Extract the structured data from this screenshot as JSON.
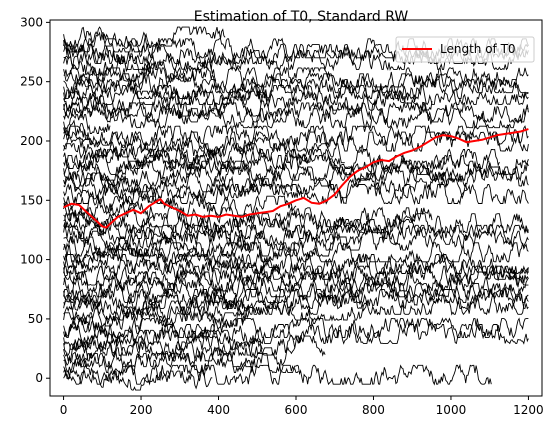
{
  "chart_data": {
    "type": "line",
    "title": "Estimation of T0, Standard RW",
    "xlabel": "",
    "ylabel": "",
    "xlim": [
      -35,
      1235
    ],
    "ylim": [
      -15,
      302
    ],
    "xticks": [
      0,
      200,
      400,
      600,
      800,
      1000,
      1200
    ],
    "yticks": [
      0,
      50,
      100,
      150,
      200,
      250,
      300
    ],
    "grid": false,
    "legend": {
      "placement": "top-right",
      "entries": [
        "Length of T0"
      ]
    },
    "series": [
      {
        "name": "Length of T0",
        "color": "#ff0000",
        "x": [
          0,
          20,
          40,
          60,
          80,
          100,
          110,
          120,
          140,
          160,
          180,
          200,
          220,
          240,
          250,
          260,
          280,
          300,
          320,
          340,
          360,
          380,
          400,
          420,
          440,
          460,
          480,
          500,
          520,
          540,
          560,
          580,
          600,
          620,
          640,
          660,
          680,
          700,
          720,
          740,
          760,
          780,
          800,
          820,
          840,
          860,
          880,
          900,
          920,
          940,
          960,
          980,
          1000,
          1020,
          1040,
          1060,
          1080,
          1100,
          1120,
          1140,
          1160,
          1180,
          1200
        ],
        "y": [
          144,
          147,
          146,
          140,
          134,
          128,
          127,
          130,
          136,
          139,
          142,
          139,
          145,
          149,
          151,
          147,
          144,
          141,
          137,
          138,
          136,
          137,
          136,
          138,
          137,
          136,
          138,
          139,
          140,
          141,
          145,
          147,
          150,
          152,
          148,
          147,
          150,
          155,
          163,
          170,
          175,
          178,
          182,
          184,
          183,
          187,
          190,
          192,
          195,
          199,
          203,
          205,
          204,
          202,
          199,
          200,
          201,
          203,
          205,
          206,
          207,
          208,
          210
        ]
      }
    ],
    "background_walks": {
      "color": "#000000",
      "count": 60,
      "x_start": 0,
      "x_end_range": [
        30,
        1200
      ],
      "y_range": [
        0,
        290
      ]
    }
  }
}
